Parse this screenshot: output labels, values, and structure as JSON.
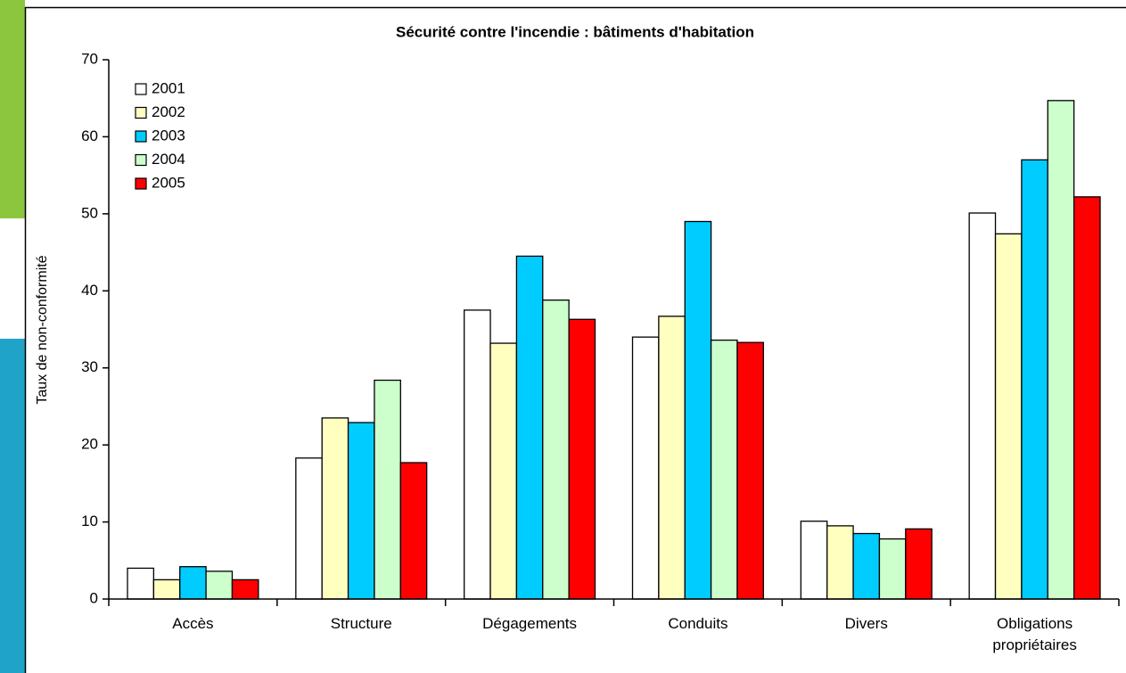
{
  "chart_data": {
    "type": "bar",
    "title": "Sécurité contre l'incendie : bâtiments d'habitation",
    "ylabel": "Taux de non-conformité",
    "categories": [
      "Accès",
      "Structure",
      "Dégagements",
      "Conduits",
      "Divers",
      "Obligations propriétaires"
    ],
    "series": [
      {
        "name": "2001",
        "color": "#ffffff",
        "values": [
          4.0,
          18.3,
          37.5,
          34.0,
          10.1,
          50.1
        ]
      },
      {
        "name": "2002",
        "color": "#ffffc0",
        "values": [
          2.5,
          23.5,
          33.2,
          36.7,
          9.5,
          47.4
        ]
      },
      {
        "name": "2003",
        "color": "#00ccff",
        "values": [
          4.2,
          22.9,
          44.5,
          49.0,
          8.5,
          57.0
        ]
      },
      {
        "name": "2004",
        "color": "#ccffcc",
        "values": [
          3.6,
          28.4,
          38.8,
          33.6,
          7.8,
          64.7
        ]
      },
      {
        "name": "2005",
        "color": "#ff0000",
        "values": [
          2.5,
          17.7,
          36.3,
          33.3,
          9.1,
          52.2
        ]
      }
    ],
    "ylim": [
      0,
      70
    ],
    "yticks": [
      0,
      10,
      20,
      30,
      40,
      50,
      60,
      70
    ],
    "legend": "upper left"
  }
}
